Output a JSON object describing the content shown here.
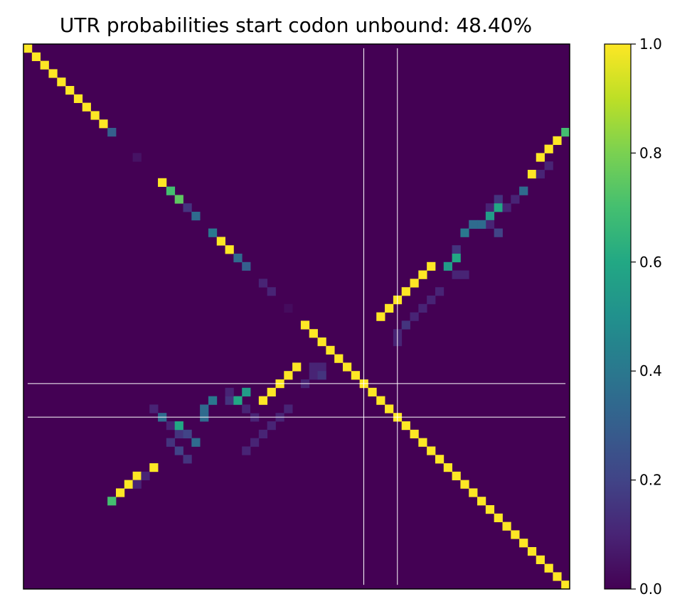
{
  "chart_data": {
    "type": "heatmap",
    "title": "UTR probabilities start codon unbound: 48.40%",
    "xlabel": "",
    "ylabel": "",
    "size": 65,
    "value_range": [
      0.0,
      1.0
    ],
    "colormap": "viridis",
    "colorbar": {
      "ticks": [
        0.0,
        0.2,
        0.4,
        0.6,
        0.8,
        1.0
      ],
      "tick_labels": [
        "0.0",
        "0.2",
        "0.4",
        "0.6",
        "0.8",
        "1.0"
      ]
    },
    "background_value": 0.0,
    "start_codon_lines": {
      "rows": [
        40,
        44
      ],
      "cols": [
        40,
        44
      ],
      "color": "#ffffff"
    },
    "cells": [
      [
        0,
        0,
        1
      ],
      [
        1,
        1,
        1
      ],
      [
        2,
        2,
        1
      ],
      [
        3,
        3,
        1
      ],
      [
        4,
        4,
        1
      ],
      [
        5,
        5,
        1
      ],
      [
        6,
        6,
        1
      ],
      [
        7,
        7,
        1
      ],
      [
        8,
        8,
        1
      ],
      [
        9,
        9,
        1
      ],
      [
        10,
        10,
        0.3
      ],
      [
        13,
        13,
        0.05
      ],
      [
        16,
        16,
        1
      ],
      [
        17,
        17,
        0.7
      ],
      [
        18,
        18,
        0.75
      ],
      [
        19,
        19,
        0.15
      ],
      [
        20,
        20,
        0.35
      ],
      [
        22,
        22,
        0.4
      ],
      [
        23,
        23,
        1
      ],
      [
        24,
        24,
        1
      ],
      [
        25,
        25,
        0.35
      ],
      [
        26,
        26,
        0.3
      ],
      [
        28,
        28,
        0.1
      ],
      [
        29,
        29,
        0.1
      ],
      [
        31,
        31,
        0.03
      ],
      [
        33,
        33,
        1
      ],
      [
        34,
        34,
        1
      ],
      [
        35,
        35,
        1
      ],
      [
        36,
        36,
        1
      ],
      [
        37,
        37,
        1
      ],
      [
        38,
        38,
        1
      ],
      [
        39,
        39,
        1
      ],
      [
        40,
        40,
        1
      ],
      [
        41,
        41,
        1
      ],
      [
        42,
        42,
        1
      ],
      [
        43,
        43,
        1
      ],
      [
        44,
        44,
        1
      ],
      [
        45,
        45,
        1
      ],
      [
        46,
        46,
        1
      ],
      [
        47,
        47,
        1
      ],
      [
        48,
        48,
        1
      ],
      [
        49,
        49,
        1
      ],
      [
        50,
        50,
        1
      ],
      [
        51,
        51,
        1
      ],
      [
        52,
        52,
        1
      ],
      [
        53,
        53,
        1
      ],
      [
        54,
        54,
        1
      ],
      [
        55,
        55,
        1
      ],
      [
        56,
        56,
        1
      ],
      [
        57,
        57,
        1
      ],
      [
        58,
        58,
        1
      ],
      [
        59,
        59,
        1
      ],
      [
        60,
        60,
        1
      ],
      [
        61,
        61,
        1
      ],
      [
        62,
        62,
        1
      ],
      [
        63,
        63,
        1
      ],
      [
        64,
        64,
        1
      ],
      [
        10,
        64,
        0.7
      ],
      [
        11,
        63,
        1
      ],
      [
        12,
        62,
        1
      ],
      [
        13,
        61,
        1
      ],
      [
        15,
        60,
        1
      ],
      [
        14,
        62,
        0.1
      ],
      [
        15,
        61,
        0.1
      ],
      [
        17,
        59,
        0.35
      ],
      [
        18,
        56,
        0.15
      ],
      [
        19,
        55,
        0.1
      ],
      [
        19,
        56,
        0.6
      ],
      [
        20,
        55,
        0.55
      ],
      [
        21,
        55,
        0.1
      ],
      [
        21,
        53,
        0.35
      ],
      [
        21,
        54,
        0.35
      ],
      [
        22,
        52,
        0.4
      ],
      [
        22,
        56,
        0.2
      ],
      [
        18,
        58,
        0.1
      ],
      [
        19,
        57,
        0.1
      ],
      [
        24,
        51,
        0.15
      ],
      [
        25,
        51,
        0.6
      ],
      [
        26,
        50,
        0.55
      ],
      [
        27,
        51,
        0.1
      ],
      [
        27,
        52,
        0.1
      ],
      [
        26,
        48,
        1
      ],
      [
        27,
        47,
        1
      ],
      [
        28,
        46,
        1
      ],
      [
        29,
        45,
        1
      ],
      [
        30,
        44,
        1
      ],
      [
        31,
        43,
        1
      ],
      [
        32,
        42,
        1
      ],
      [
        29,
        49,
        0.1
      ],
      [
        30,
        48,
        0.1
      ],
      [
        31,
        47,
        0.1
      ],
      [
        32,
        46,
        0.1
      ],
      [
        33,
        45,
        0.15
      ],
      [
        34,
        44,
        0.1
      ],
      [
        35,
        44,
        0.1
      ],
      [
        54,
        10,
        0.7
      ],
      [
        53,
        11,
        1
      ],
      [
        52,
        12,
        1
      ],
      [
        51,
        13,
        1
      ],
      [
        50,
        15,
        1
      ],
      [
        51,
        14,
        0.1
      ],
      [
        52,
        13,
        0.1
      ],
      [
        47,
        20,
        0.35
      ],
      [
        46,
        18,
        0.15
      ],
      [
        45,
        17,
        0.1
      ],
      [
        45,
        18,
        0.6
      ],
      [
        44,
        16,
        0.35
      ],
      [
        43,
        15,
        0.1
      ],
      [
        43,
        21,
        0.35
      ],
      [
        44,
        21,
        0.35
      ],
      [
        42,
        22,
        0.4
      ],
      [
        46,
        19,
        0.2
      ],
      [
        47,
        17,
        0.15
      ],
      [
        48,
        18,
        0.2
      ],
      [
        49,
        19,
        0.15
      ],
      [
        42,
        24,
        0.15
      ],
      [
        42,
        25,
        0.6
      ],
      [
        41,
        26,
        0.55
      ],
      [
        43,
        26,
        0.1
      ],
      [
        44,
        27,
        0.1
      ],
      [
        41,
        24,
        0.1
      ],
      [
        48,
        26,
        0.1
      ],
      [
        47,
        27,
        0.1
      ],
      [
        46,
        28,
        0.1
      ],
      [
        45,
        29,
        0.1
      ],
      [
        44,
        30,
        0.1
      ],
      [
        43,
        31,
        0.1
      ],
      [
        38,
        32,
        1
      ],
      [
        39,
        31,
        1
      ],
      [
        40,
        30,
        1
      ],
      [
        41,
        29,
        1
      ],
      [
        42,
        28,
        1
      ],
      [
        43,
        27,
        0.0
      ],
      [
        38,
        34,
        0.1
      ],
      [
        38,
        35,
        0.1
      ],
      [
        39,
        34,
        0.1
      ],
      [
        39,
        35,
        0.15
      ],
      [
        40,
        33,
        0.1
      ]
    ]
  }
}
